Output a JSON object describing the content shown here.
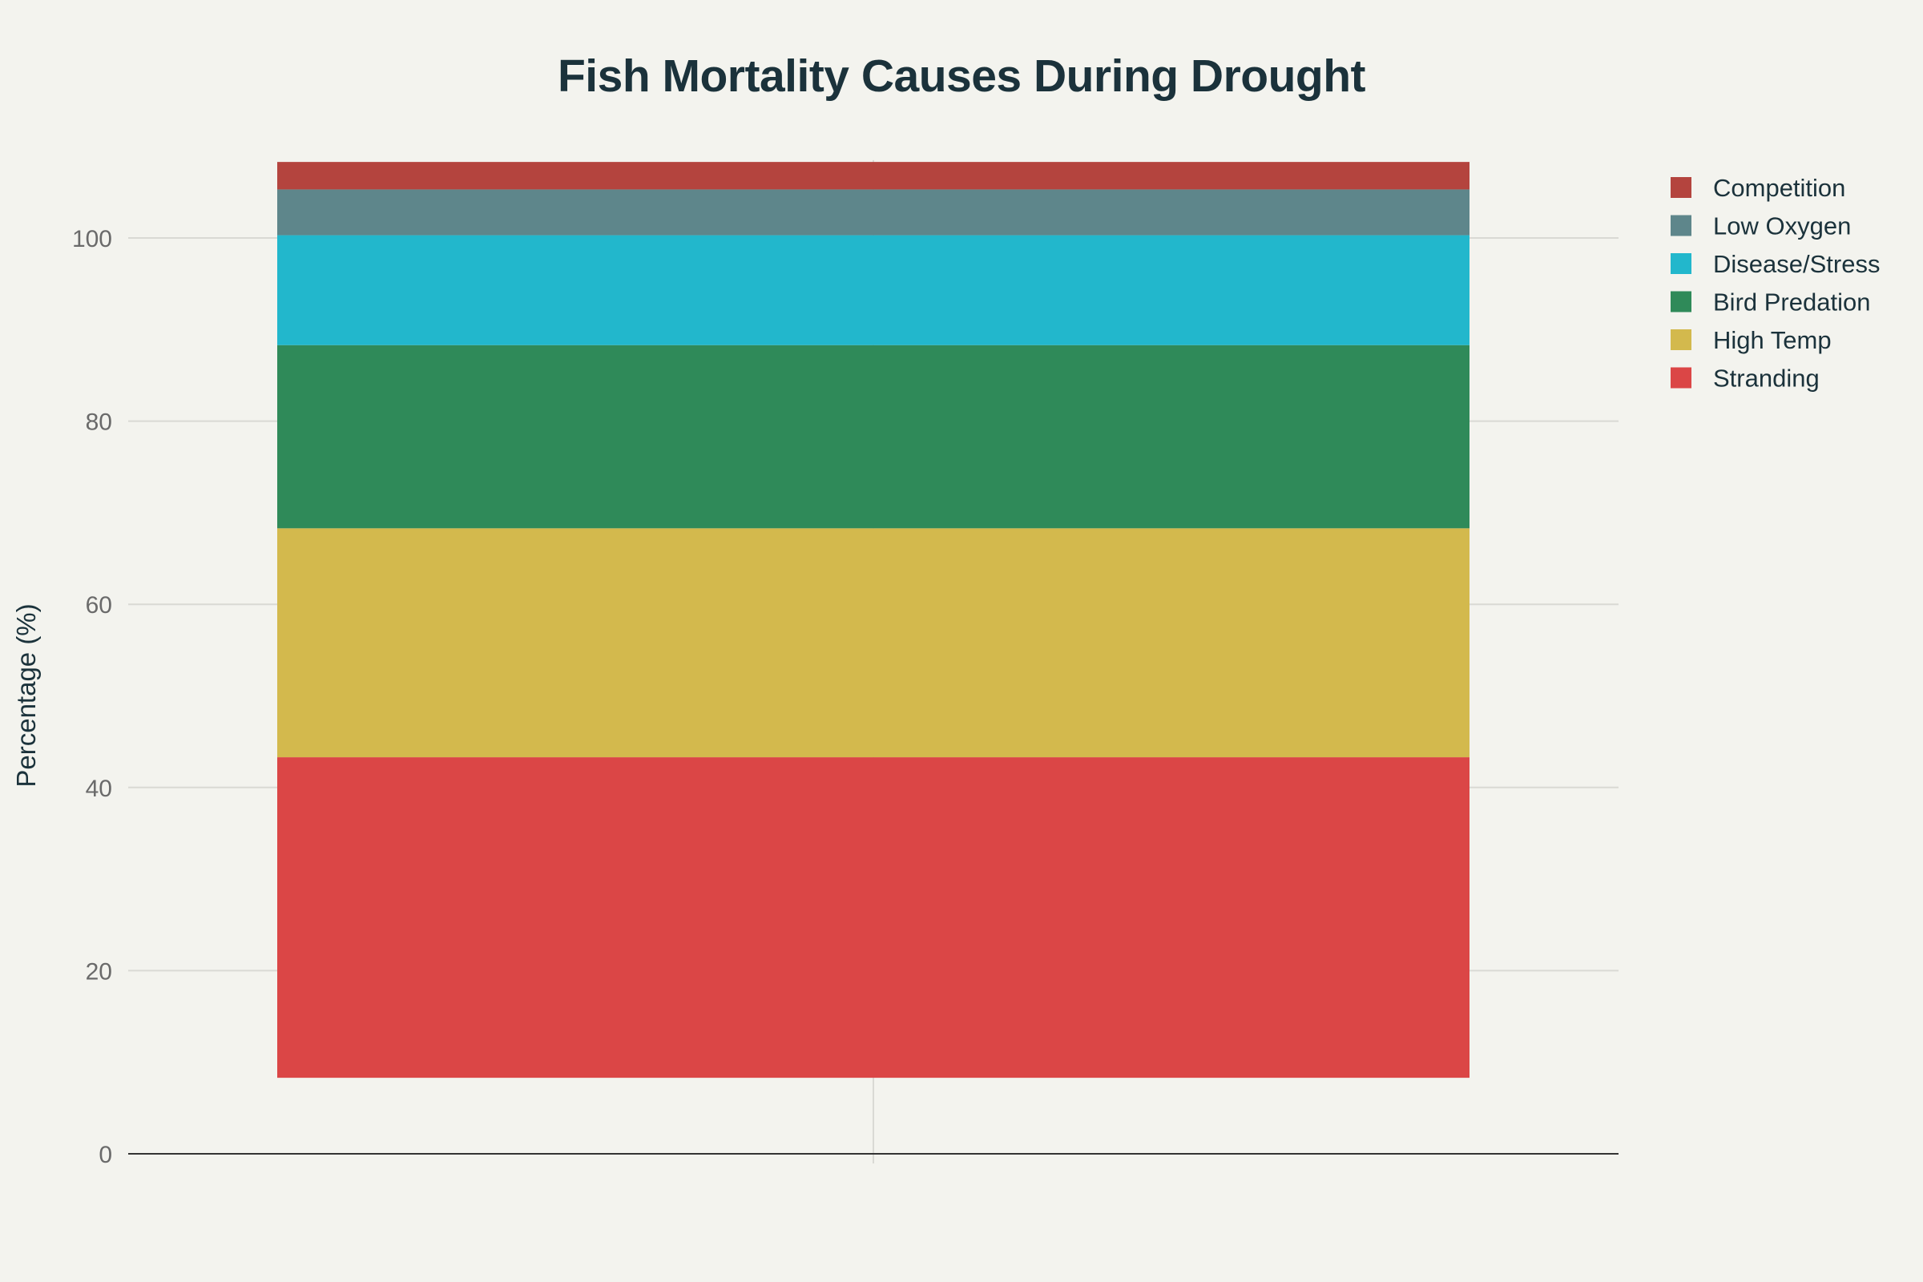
{
  "chart_data": {
    "type": "bar",
    "stacked": true,
    "title": "Fish Mortality Causes During Drought",
    "xlabel": "",
    "ylabel": "Percentage (%)",
    "ylim": [
      0,
      108.5
    ],
    "yticks": [
      0,
      20,
      40,
      60,
      80,
      100
    ],
    "grid": true,
    "legend_position": "top-right",
    "categories": [
      ""
    ],
    "bar_base": 8.3,
    "series": [
      {
        "name": "Stranding",
        "values": [
          35
        ],
        "color": "#db4646"
      },
      {
        "name": "High Temp",
        "values": [
          25
        ],
        "color": "#d3b94d"
      },
      {
        "name": "Bird Predation",
        "values": [
          20
        ],
        "color": "#2f8a59"
      },
      {
        "name": "Disease/Stress",
        "values": [
          12
        ],
        "color": "#22b7cc"
      },
      {
        "name": "Low Oxygen",
        "values": [
          5
        ],
        "color": "#5e868b"
      },
      {
        "name": "Competition",
        "values": [
          3
        ],
        "color": "#b4443e"
      }
    ]
  }
}
